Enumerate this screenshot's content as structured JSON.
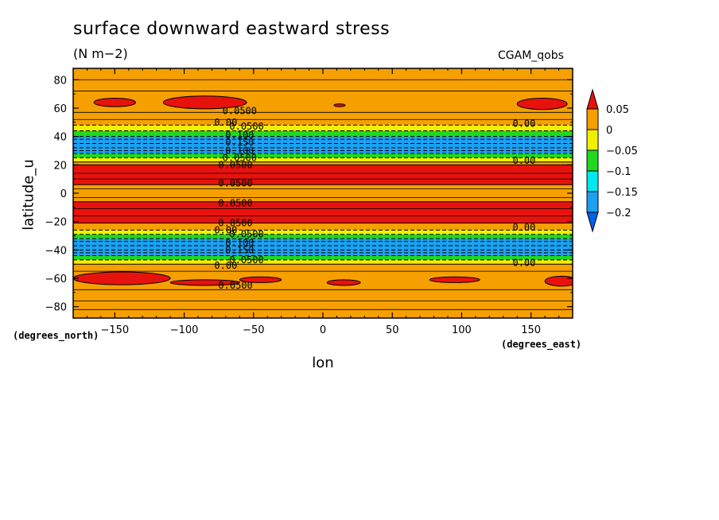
{
  "chart_data": {
    "type": "heatmap",
    "title": "surface downward eastward stress",
    "units": "(N m−2)",
    "dataset": "CGAM_qobs",
    "xlabel": "lon",
    "ylabel": "latitude_u",
    "x_units_label": "(degrees_east)",
    "y_units_label": "(degrees_north)",
    "xlim": [
      -180,
      180
    ],
    "ylim": [
      -88,
      88
    ],
    "x_ticks": [
      -150,
      -100,
      -50,
      0,
      50,
      100,
      150
    ],
    "x_tick_labels": [
      "−150",
      "−100",
      "−50",
      "0",
      "50",
      "100",
      "150"
    ],
    "y_ticks": [
      80,
      60,
      40,
      20,
      0,
      -20,
      -40,
      -60,
      -80
    ],
    "y_tick_labels": [
      "80",
      "60",
      "40",
      "20",
      "0",
      "−20",
      "−40",
      "−60",
      "−80"
    ],
    "colorbar": {
      "levels": [
        -0.2,
        -0.15,
        -0.1,
        -0.05,
        0,
        0.05
      ],
      "labels": [
        "0.05",
        "0",
        "−0.05",
        "−0.1",
        "−0.15",
        "−0.2"
      ],
      "colors": {
        "above_0.05": "#e8120c",
        "0_to_0.05": "#f5a000",
        "-0.05_to_0": "#f0f000",
        "-0.1_to_-0.05": "#20d820",
        "-0.15_to_-0.1": "#00e8f0",
        "-0.2_to_-0.15": "#1ca0f0",
        "below_-0.2": "#0060e8"
      }
    },
    "zonal_bands": [
      {
        "lat_from": 88,
        "lat_to": 48,
        "value_class": "0_to_0.05"
      },
      {
        "lat_from": 48,
        "lat_to": 44,
        "value_class": "-0.05_to_0"
      },
      {
        "lat_from": 44,
        "lat_to": 40,
        "value_class": "-0.1_to_-0.05"
      },
      {
        "lat_from": 40,
        "lat_to": 28,
        "value_class": "-0.2_to_-0.15"
      },
      {
        "lat_from": 28,
        "lat_to": 25,
        "value_class": "-0.1_to_-0.05"
      },
      {
        "lat_from": 25,
        "lat_to": 22,
        "value_class": "-0.05_to_0"
      },
      {
        "lat_from": 22,
        "lat_to": 20,
        "value_class": "0_to_0.05"
      },
      {
        "lat_from": 20,
        "lat_to": 6,
        "value_class": "above_0.05"
      },
      {
        "lat_from": 6,
        "lat_to": -6,
        "value_class": "0_to_0.05"
      },
      {
        "lat_from": -6,
        "lat_to": -21,
        "value_class": "above_0.05"
      },
      {
        "lat_from": -21,
        "lat_to": -26,
        "value_class": "0_to_0.05"
      },
      {
        "lat_from": -26,
        "lat_to": -29,
        "value_class": "-0.05_to_0"
      },
      {
        "lat_from": -29,
        "lat_to": -32,
        "value_class": "-0.1_to_-0.05"
      },
      {
        "lat_from": -32,
        "lat_to": -44,
        "value_class": "-0.2_to_-0.15"
      },
      {
        "lat_from": -44,
        "lat_to": -47,
        "value_class": "-0.1_to_-0.05"
      },
      {
        "lat_from": -47,
        "lat_to": -50,
        "value_class": "-0.05_to_0"
      },
      {
        "lat_from": -50,
        "lat_to": -88,
        "value_class": "0_to_0.05"
      }
    ],
    "local_maxima": [
      {
        "lon": -150,
        "lat": 64,
        "lon_extent": 30,
        "lat_extent": 6
      },
      {
        "lon": -85,
        "lat": 64,
        "lon_extent": 60,
        "lat_extent": 9
      },
      {
        "lon": 12,
        "lat": 62,
        "lon_extent": 8,
        "lat_extent": 2
      },
      {
        "lon": 158,
        "lat": 63,
        "lon_extent": 36,
        "lat_extent": 8
      },
      {
        "lon": -145,
        "lat": -60,
        "lon_extent": 70,
        "lat_extent": 9
      },
      {
        "lon": -85,
        "lat": -63,
        "lon_extent": 50,
        "lat_extent": 4
      },
      {
        "lon": -45,
        "lat": -61,
        "lon_extent": 30,
        "lat_extent": 4
      },
      {
        "lon": 15,
        "lat": -63,
        "lon_extent": 24,
        "lat_extent": 4
      },
      {
        "lon": 95,
        "lat": -61,
        "lon_extent": 36,
        "lat_extent": 4
      },
      {
        "lon": 172,
        "lat": -62,
        "lon_extent": 24,
        "lat_extent": 7
      }
    ],
    "contour_labels": [
      {
        "text": "0.0500",
        "lon": -60,
        "lat": 58
      },
      {
        "text": "0.00",
        "lon": -70,
        "lat": 50
      },
      {
        "text": "0.0500",
        "lon": -55,
        "lat": 47
      },
      {
        "text": "0.100",
        "lon": -60,
        "lat": 41
      },
      {
        "text": "0.150",
        "lon": -60,
        "lat": 36
      },
      {
        "text": "0.100",
        "lon": -60,
        "lat": 30
      },
      {
        "text": "0.0500",
        "lon": -60,
        "lat": 25
      },
      {
        "text": "0.0500",
        "lon": -63,
        "lat": 20
      },
      {
        "text": "0.0500",
        "lon": -63,
        "lat": 7
      },
      {
        "text": "0.0500",
        "lon": -63,
        "lat": -7
      },
      {
        "text": "0.0500",
        "lon": -63,
        "lat": -21
      },
      {
        "text": "0.00",
        "lon": -70,
        "lat": -26
      },
      {
        "text": "0.0500",
        "lon": -55,
        "lat": -29
      },
      {
        "text": "0.100",
        "lon": -60,
        "lat": -35
      },
      {
        "text": "0.150",
        "lon": -60,
        "lat": -40
      },
      {
        "text": "0.0500",
        "lon": -55,
        "lat": -47
      },
      {
        "text": "0.00",
        "lon": -70,
        "lat": -51
      },
      {
        "text": "0.0500",
        "lon": -63,
        "lat": -65
      },
      {
        "text": "0.00",
        "lon": 145,
        "lat": 49
      },
      {
        "text": "0.00",
        "lon": 145,
        "lat": 23
      },
      {
        "text": "0.00",
        "lon": 145,
        "lat": -24
      },
      {
        "text": "0.00",
        "lon": 145,
        "lat": -49
      }
    ]
  }
}
